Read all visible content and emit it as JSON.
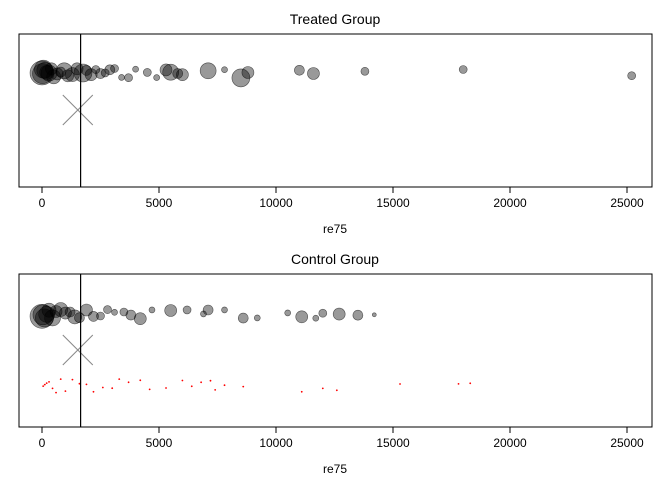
{
  "chart_data": [
    {
      "type": "scatter",
      "title": "Treated Group",
      "xlabel": "re75",
      "ylabel": "",
      "xlim": [
        -1000,
        26000
      ],
      "x_ticks": [
        0,
        5000,
        10000,
        15000,
        20000,
        25000
      ],
      "reference_line_x": 1650,
      "centroid_marker_x": 1530,
      "series": [
        {
          "name": "",
          "color": "#000000",
          "style": "bubbles",
          "points": [
            {
              "x": 0,
              "s": 12
            },
            {
              "x": 20,
              "s": 10
            },
            {
              "x": 60,
              "s": 9
            },
            {
              "x": 120,
              "s": 8
            },
            {
              "x": 200,
              "s": 7
            },
            {
              "x": 300,
              "s": 8
            },
            {
              "x": 400,
              "s": 6
            },
            {
              "x": 500,
              "s": 7
            },
            {
              "x": 650,
              "s": 6
            },
            {
              "x": 800,
              "s": 5
            },
            {
              "x": 950,
              "s": 8
            },
            {
              "x": 1100,
              "s": 6
            },
            {
              "x": 1300,
              "s": 7
            },
            {
              "x": 1500,
              "s": 6
            },
            {
              "x": 1750,
              "s": 9
            },
            {
              "x": 1900,
              "s": 5
            },
            {
              "x": 2100,
              "s": 6
            },
            {
              "x": 2300,
              "s": 4
            },
            {
              "x": 2500,
              "s": 5
            },
            {
              "x": 2700,
              "s": 4
            },
            {
              "x": 2900,
              "s": 5
            },
            {
              "x": 3100,
              "s": 4
            },
            {
              "x": 3400,
              "s": 3
            },
            {
              "x": 3700,
              "s": 4
            },
            {
              "x": 4000,
              "s": 3
            },
            {
              "x": 4500,
              "s": 4
            },
            {
              "x": 4900,
              "s": 3
            },
            {
              "x": 5300,
              "s": 6
            },
            {
              "x": 5500,
              "s": 8
            },
            {
              "x": 5800,
              "s": 5
            },
            {
              "x": 6000,
              "s": 6
            },
            {
              "x": 7100,
              "s": 8
            },
            {
              "x": 7800,
              "s": 3
            },
            {
              "x": 8500,
              "s": 9
            },
            {
              "x": 8800,
              "s": 6
            },
            {
              "x": 11000,
              "s": 5
            },
            {
              "x": 11600,
              "s": 6
            },
            {
              "x": 13800,
              "s": 4
            },
            {
              "x": 18000,
              "s": 4
            },
            {
              "x": 25200,
              "s": 4
            }
          ]
        }
      ]
    },
    {
      "type": "scatter",
      "title": "Control Group",
      "xlabel": "re75",
      "ylabel": "",
      "xlim": [
        -1000,
        26000
      ],
      "x_ticks": [
        0,
        5000,
        10000,
        15000,
        20000,
        25000
      ],
      "reference_line_x": 1650,
      "centroid_marker_x": 1530,
      "series": [
        {
          "name": "",
          "color": "#000000",
          "style": "bubbles",
          "points": [
            {
              "x": 0,
              "s": 12
            },
            {
              "x": 40,
              "s": 10
            },
            {
              "x": 100,
              "s": 9
            },
            {
              "x": 200,
              "s": 8
            },
            {
              "x": 300,
              "s": 7
            },
            {
              "x": 450,
              "s": 8
            },
            {
              "x": 600,
              "s": 6
            },
            {
              "x": 800,
              "s": 7
            },
            {
              "x": 1000,
              "s": 6
            },
            {
              "x": 1200,
              "s": 5
            },
            {
              "x": 1400,
              "s": 7
            },
            {
              "x": 1600,
              "s": 5
            },
            {
              "x": 1900,
              "s": 6
            },
            {
              "x": 2200,
              "s": 5
            },
            {
              "x": 2500,
              "s": 4
            },
            {
              "x": 2800,
              "s": 4
            },
            {
              "x": 3100,
              "s": 3
            },
            {
              "x": 3500,
              "s": 4
            },
            {
              "x": 3800,
              "s": 5
            },
            {
              "x": 4200,
              "s": 6
            },
            {
              "x": 4700,
              "s": 3
            },
            {
              "x": 5500,
              "s": 6
            },
            {
              "x": 6200,
              "s": 4
            },
            {
              "x": 6900,
              "s": 3
            },
            {
              "x": 7100,
              "s": 5
            },
            {
              "x": 7800,
              "s": 3
            },
            {
              "x": 8600,
              "s": 5
            },
            {
              "x": 9200,
              "s": 3
            },
            {
              "x": 10500,
              "s": 3
            },
            {
              "x": 11100,
              "s": 6
            },
            {
              "x": 11700,
              "s": 3
            },
            {
              "x": 12000,
              "s": 4
            },
            {
              "x": 12700,
              "s": 6
            },
            {
              "x": 13500,
              "s": 5
            },
            {
              "x": 14200,
              "s": 2
            }
          ]
        },
        {
          "name": "",
          "color": "#ff0000",
          "style": "dots",
          "points": [
            {
              "x": 50
            },
            {
              "x": 120
            },
            {
              "x": 200
            },
            {
              "x": 300
            },
            {
              "x": 450
            },
            {
              "x": 600
            },
            {
              "x": 800
            },
            {
              "x": 1000
            },
            {
              "x": 1300
            },
            {
              "x": 1600
            },
            {
              "x": 1900
            },
            {
              "x": 2200
            },
            {
              "x": 2600
            },
            {
              "x": 3000
            },
            {
              "x": 3300
            },
            {
              "x": 3700
            },
            {
              "x": 4200
            },
            {
              "x": 4600
            },
            {
              "x": 5300
            },
            {
              "x": 6000
            },
            {
              "x": 6400
            },
            {
              "x": 6800
            },
            {
              "x": 7200
            },
            {
              "x": 7400
            },
            {
              "x": 7800
            },
            {
              "x": 8600
            },
            {
              "x": 11100
            },
            {
              "x": 12000
            },
            {
              "x": 12600
            },
            {
              "x": 15300
            },
            {
              "x": 17800
            },
            {
              "x": 18300
            }
          ]
        }
      ]
    }
  ]
}
